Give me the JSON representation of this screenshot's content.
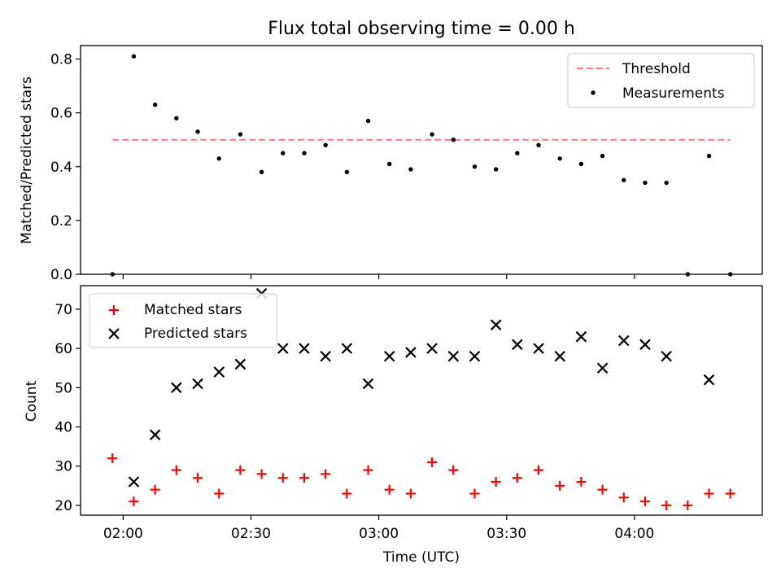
{
  "figure": {
    "title": "Flux total observing time = 0.00 h"
  },
  "chart_data": [
    {
      "type": "scatter",
      "ylabel": "Matched/Predicted stars",
      "xlabel": "",
      "xlim": [
        110,
        270
      ],
      "ylim": [
        0,
        0.85
      ],
      "yticks": [
        0.0,
        0.2,
        0.4,
        0.6,
        0.8
      ],
      "ytick_labels": [
        "0.0",
        "0.2",
        "0.4",
        "0.6",
        "0.8"
      ],
      "xticks": [
        120,
        150,
        180,
        210,
        240
      ],
      "legend_position": "top-right",
      "threshold": {
        "name": "Threshold",
        "value": 0.5,
        "x_range": [
          117.5,
          262.5
        ],
        "color": "#ff7b7b"
      },
      "series": [
        {
          "name": "Measurements",
          "marker": "dot",
          "color": "#000000",
          "x": [
            117.5,
            122.5,
            127.5,
            132.5,
            137.5,
            142.5,
            147.5,
            152.5,
            157.5,
            162.5,
            167.5,
            172.5,
            177.5,
            182.5,
            187.5,
            192.5,
            197.5,
            202.5,
            207.5,
            212.5,
            217.5,
            222.5,
            227.5,
            232.5,
            237.5,
            242.5,
            247.5,
            252.5,
            257.5,
            262.5
          ],
          "y": [
            0.0,
            0.81,
            0.63,
            0.58,
            0.53,
            0.43,
            0.52,
            0.38,
            0.45,
            0.45,
            0.48,
            0.38,
            0.57,
            0.41,
            0.39,
            0.52,
            0.5,
            0.4,
            0.39,
            0.45,
            0.48,
            0.43,
            0.41,
            0.44,
            0.35,
            0.34,
            0.34,
            0.0,
            0.44,
            0.0
          ]
        }
      ]
    },
    {
      "type": "scatter",
      "ylabel": "Count",
      "xlabel": "Time (UTC)",
      "xlim": [
        110,
        270
      ],
      "ylim": [
        17.5,
        76
      ],
      "yticks": [
        20,
        30,
        40,
        50,
        60,
        70
      ],
      "ytick_labels": [
        "20",
        "30",
        "40",
        "50",
        "60",
        "70"
      ],
      "xticks": [
        120,
        150,
        180,
        210,
        240
      ],
      "xtick_labels": [
        "02:00",
        "02:30",
        "03:00",
        "03:30",
        "04:00"
      ],
      "legend_position": "top-left",
      "series": [
        {
          "name": "Matched stars",
          "marker": "plus",
          "color": "#ff0000",
          "x": [
            117.5,
            122.5,
            127.5,
            132.5,
            137.5,
            142.5,
            147.5,
            152.5,
            157.5,
            162.5,
            167.5,
            172.5,
            177.5,
            182.5,
            187.5,
            192.5,
            197.5,
            202.5,
            207.5,
            212.5,
            217.5,
            222.5,
            227.5,
            232.5,
            237.5,
            242.5,
            247.5,
            252.5,
            257.5,
            262.5
          ],
          "y": [
            32,
            21,
            24,
            29,
            27,
            23,
            29,
            28,
            27,
            27,
            28,
            23,
            29,
            24,
            23,
            31,
            29,
            23,
            26,
            27,
            29,
            25,
            26,
            24,
            22,
            21,
            20,
            20,
            23,
            23
          ]
        },
        {
          "name": "Predicted stars",
          "marker": "x",
          "color": "#000000",
          "x": [
            122.5,
            127.5,
            132.5,
            137.5,
            142.5,
            147.5,
            152.5,
            157.5,
            162.5,
            167.5,
            172.5,
            177.5,
            182.5,
            187.5,
            192.5,
            197.5,
            202.5,
            207.5,
            212.5,
            217.5,
            222.5,
            227.5,
            232.5,
            237.5,
            242.5,
            247.5,
            252.5,
            257.5
          ],
          "y": [
            26,
            38,
            50,
            51,
            54,
            56,
            74,
            60,
            60,
            58,
            60,
            51,
            58,
            59,
            60,
            58,
            58,
            66,
            61,
            60,
            58,
            63,
            55,
            62,
            61,
            58,
            null,
            52
          ]
        }
      ]
    }
  ]
}
